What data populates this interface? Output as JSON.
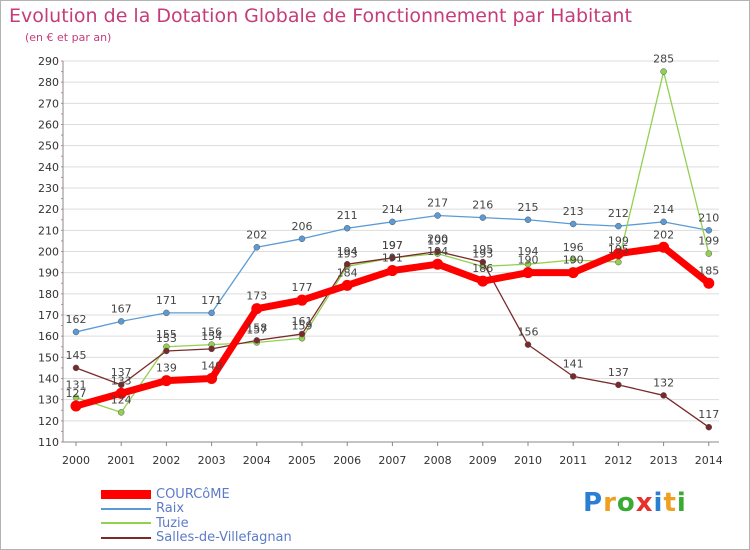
{
  "header": {
    "title": "Evolution de la Dotation Globale de Fonctionnement par Habitant",
    "subtitle": "(en € et par an)"
  },
  "legend": {
    "items": [
      {
        "label": "COURCôME",
        "color": "#ff0000"
      },
      {
        "label": "Raix",
        "color": "#5b9bd5"
      },
      {
        "label": "Tuzie",
        "color": "#92d050"
      },
      {
        "label": "Salles-de-Villefagnan",
        "color": "#7a2a2a"
      }
    ]
  },
  "logo": {
    "text": "Proxiti"
  },
  "chart_data": {
    "type": "line",
    "title": "Evolution de la Dotation Globale de Fonctionnement par Habitant",
    "subtitle": "(en € et par an)",
    "x": [
      "2000",
      "2001",
      "2002",
      "2003",
      "2004",
      "2005",
      "2006",
      "2007",
      "2008",
      "2009",
      "2010",
      "2011",
      "2012",
      "2013",
      "2014"
    ],
    "ylim": [
      110,
      290
    ],
    "yticks": [
      110,
      120,
      130,
      140,
      150,
      160,
      170,
      180,
      190,
      200,
      210,
      220,
      230,
      240,
      250,
      260,
      270,
      280,
      290
    ],
    "grid": true,
    "legend_position": "bottom-left",
    "series": [
      {
        "name": "COURCôME",
        "color": "#ff0000",
        "values": [
          127,
          133,
          139,
          140,
          173,
          177,
          184,
          191,
          194,
          186,
          190,
          190,
          199,
          202,
          185
        ]
      },
      {
        "name": "Raix",
        "color": "#5b9bd5",
        "values": [
          162,
          167,
          171,
          171,
          202,
          206,
          211,
          214,
          217,
          216,
          215,
          213,
          212,
          214,
          210
        ]
      },
      {
        "name": "Tuzie",
        "color": "#92d050",
        "values": [
          131,
          124,
          155,
          156,
          157,
          159,
          193,
          197,
          199,
          193,
          194,
          196,
          195,
          285,
          199
        ]
      },
      {
        "name": "Salles-de-Villefagnan",
        "color": "#7a2a2a",
        "values": [
          145,
          137,
          153,
          154,
          158,
          161,
          194,
          197,
          200,
          195,
          156,
          141,
          137,
          132,
          117
        ]
      }
    ]
  }
}
